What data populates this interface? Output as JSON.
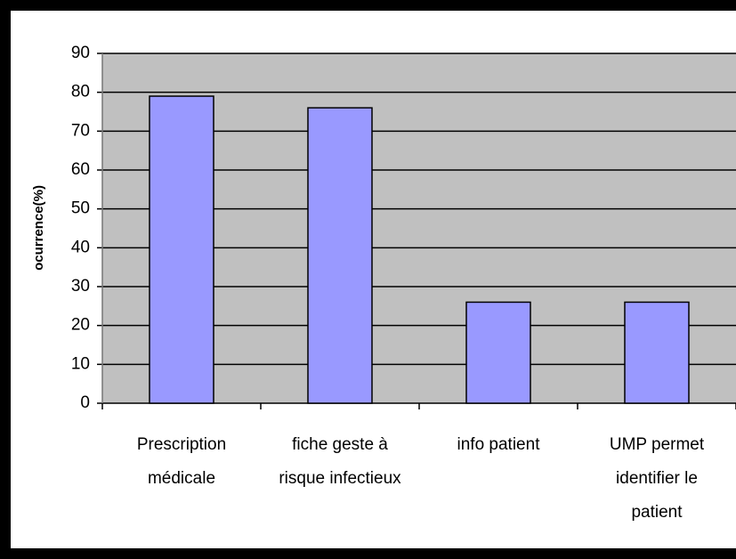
{
  "chart_data": {
    "type": "bar",
    "y_label": "ocurrence(%)",
    "categories": [
      [
        "Prescription",
        "médicale"
      ],
      [
        "fiche geste à",
        "risque infectieux"
      ],
      [
        "info patient"
      ],
      [
        "UMP permet",
        "identifier le",
        "patient"
      ]
    ],
    "values": [
      79,
      76,
      26,
      26
    ],
    "color": "#9999ff",
    "ylim": [
      0,
      90
    ],
    "yticks": [
      0,
      10,
      20,
      30,
      40,
      50,
      60,
      70,
      80,
      90
    ],
    "grid": true
  }
}
